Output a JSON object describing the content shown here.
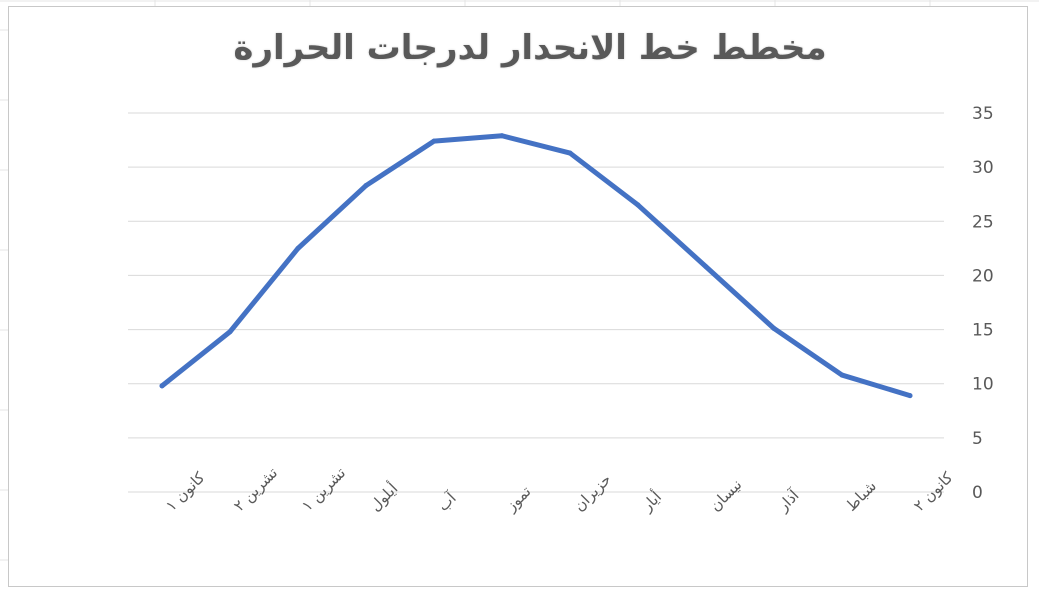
{
  "chart_data": {
    "type": "line",
    "title": "مخطط خط الانحدار لدرجات الحرارة",
    "categories": [
      "كانون ١",
      "تشرين ٢",
      "تشرين ١",
      "أيلول",
      "آب",
      "تموز",
      "حزيران",
      "أيار",
      "نيسان",
      "آذار",
      "شباط",
      "كانون ٢"
    ],
    "series": [
      {
        "values": [
          9.8,
          14.8,
          22.5,
          28.3,
          32.4,
          32.9,
          31.3,
          26.5,
          20.8,
          15.1,
          10.8,
          8.9
        ]
      }
    ],
    "ylim": [
      0,
      35
    ],
    "yticks": [
      0,
      5,
      10,
      15,
      20,
      25,
      30,
      35
    ],
    "ytick_labels": [
      "0",
      "5",
      "10",
      "15",
      "20",
      "25",
      "30",
      "35"
    ],
    "yaxis_side": "right",
    "grid": true,
    "legend": "none",
    "colors": {
      "line": "#4472c4",
      "grid": "#d9d9d9",
      "text": "#595959"
    }
  }
}
